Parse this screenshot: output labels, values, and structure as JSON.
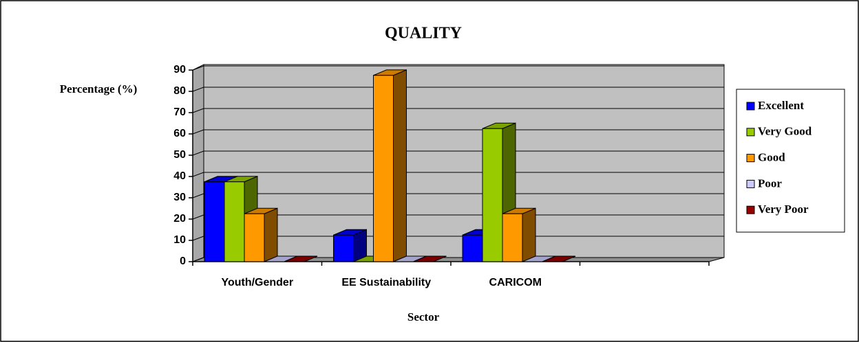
{
  "chart_data": {
    "type": "bar3d",
    "title": "QUALITY",
    "y_label": "Percentage (%)",
    "x_label": "Sector",
    "categories": [
      "Youth/Gender",
      "EE Sustainability",
      "CARICOM",
      null
    ],
    "series": [
      {
        "name": "Excellent",
        "color": "#0000ff",
        "values": [
          37.5,
          12.5,
          12.5,
          null
        ]
      },
      {
        "name": "Very Good",
        "color": "#99cc00",
        "values": [
          37.5,
          0,
          62.5,
          null
        ]
      },
      {
        "name": "Good",
        "color": "#ff9900",
        "values": [
          22.5,
          87.5,
          22.5,
          null
        ]
      },
      {
        "name": "Poor",
        "color": "#ccccff",
        "values": [
          0,
          0,
          0,
          null
        ]
      },
      {
        "name": "Very Poor",
        "color": "#990000",
        "values": [
          0,
          0,
          0,
          null
        ]
      }
    ],
    "ylim": [
      0,
      90
    ],
    "yticks": [
      0,
      10,
      20,
      30,
      40,
      50,
      60,
      70,
      80,
      90
    ],
    "grid": true,
    "legend": "right"
  }
}
